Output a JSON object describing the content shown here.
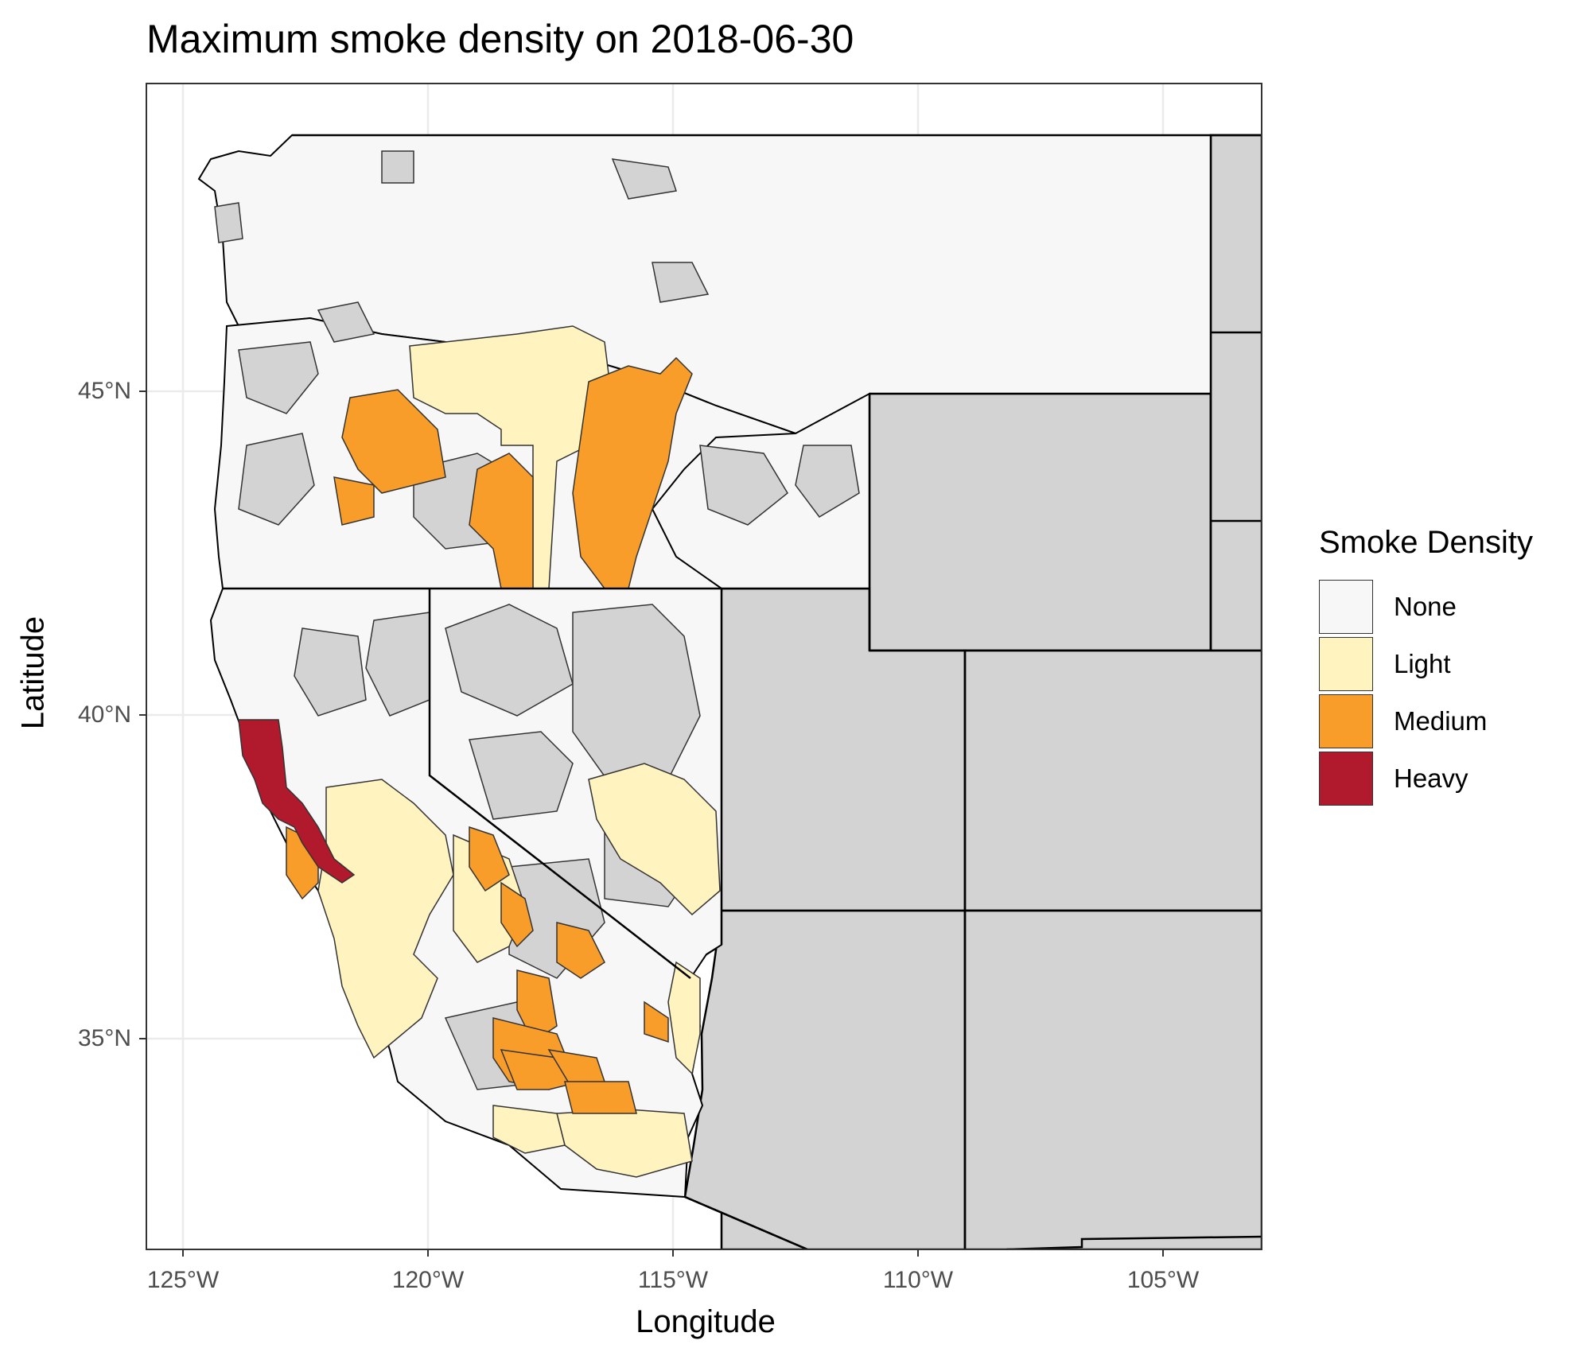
{
  "title": "Maximum smoke density on 2018-06-30",
  "x_axis": {
    "label": "Longitude",
    "ticks": [
      {
        "value": -125,
        "label": "125°W"
      },
      {
        "value": -120,
        "label": "120°W"
      },
      {
        "value": -115,
        "label": "115°W"
      },
      {
        "value": -110,
        "label": "110°W"
      },
      {
        "value": -105,
        "label": "105°W"
      }
    ]
  },
  "y_axis": {
    "label": "Latitude",
    "ticks": [
      {
        "value": 45,
        "label": "45°N"
      },
      {
        "value": 40,
        "label": "40°N"
      },
      {
        "value": 35,
        "label": "35°N"
      }
    ]
  },
  "legend": {
    "title": "Smoke Density",
    "items": [
      {
        "label": "None",
        "color": "#f7f7f7"
      },
      {
        "label": "Light",
        "color": "#fff3bf"
      },
      {
        "label": "Medium",
        "color": "#f89c2a"
      },
      {
        "label": "Heavy",
        "color": "#b11a2c"
      }
    ]
  },
  "colors": {
    "no_data": "#d3d3d3",
    "grid": "#ebebeb",
    "border": "#000000",
    "panel_border": "#333333"
  }
}
